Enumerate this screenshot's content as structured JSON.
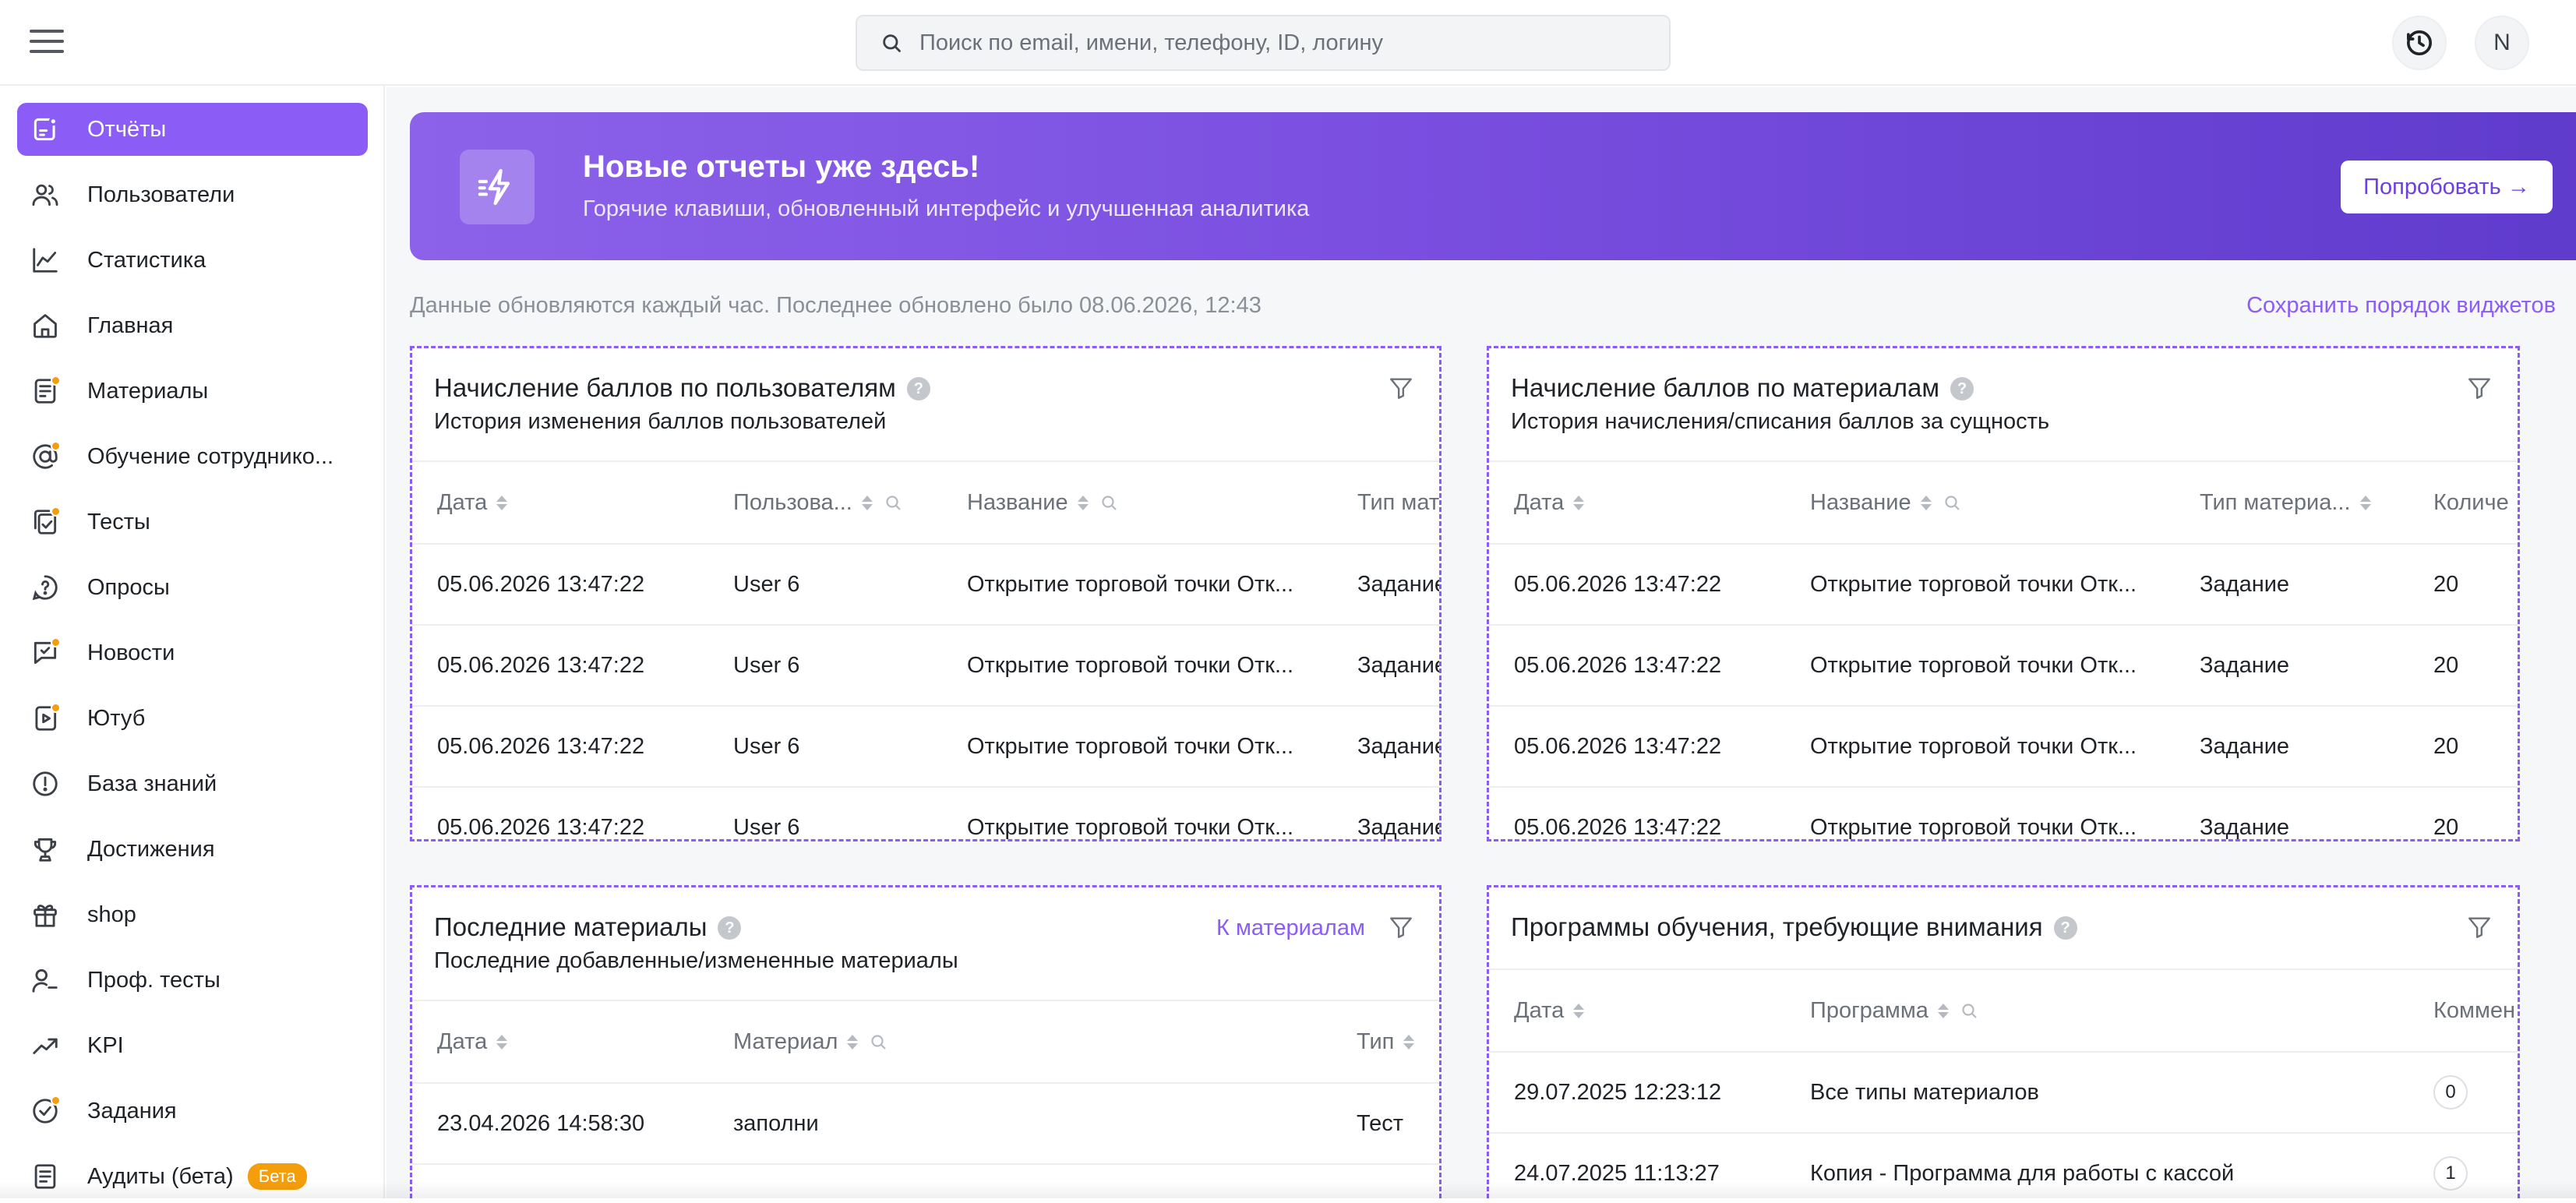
{
  "header": {
    "search_placeholder": "Поиск по email, имени, телефону, ID, логину",
    "avatar_initial": "N"
  },
  "sidebar": {
    "items": [
      {
        "label": "Отчёты",
        "icon": "reports-icon"
      },
      {
        "label": "Пользователи",
        "icon": "users-icon"
      },
      {
        "label": "Статистика",
        "icon": "statistics-icon"
      },
      {
        "label": "Главная",
        "icon": "home-icon"
      },
      {
        "label": "Материалы",
        "icon": "materials-icon"
      },
      {
        "label": "Обучение сотруднико...",
        "icon": "training-icon"
      },
      {
        "label": "Тесты",
        "icon": "tests-icon"
      },
      {
        "label": "Опросы",
        "icon": "surveys-icon"
      },
      {
        "label": "Новости",
        "icon": "news-icon"
      },
      {
        "label": "Ютуб",
        "icon": "youtube-icon"
      },
      {
        "label": "База знаний",
        "icon": "knowledge-base-icon"
      },
      {
        "label": "Достижения",
        "icon": "trophy-icon"
      },
      {
        "label": "shop",
        "icon": "gift-icon"
      },
      {
        "label": "Проф. тесты",
        "icon": "prof-tests-icon"
      },
      {
        "label": "KPI",
        "icon": "kpi-icon"
      },
      {
        "label": "Задания",
        "icon": "tasks-icon"
      },
      {
        "label": "Аудиты (бета)",
        "icon": "audits-icon",
        "badge": "Бета"
      }
    ]
  },
  "banner": {
    "title": "Новые отчеты уже здесь!",
    "subtitle": "Горячие клавиши, обновленный интерфейс и улучшенная аналитика",
    "button": "Попробовать →"
  },
  "update_note": "Данные обновляются каждый час. Последнее обновлено было 08.06.2026, 12:43",
  "save_order": "Сохранить порядок виджетов",
  "widgets": {
    "points_users": {
      "title": "Начисление баллов по пользователям",
      "subtitle": "История изменения баллов пользователей",
      "columns": [
        "Дата",
        "Пользова...",
        "Название",
        "Тип мат"
      ],
      "rows": [
        [
          "05.06.2026 13:47:22",
          "User 6",
          "Открытие торговой точки Отк...",
          "Задание"
        ],
        [
          "05.06.2026 13:47:22",
          "User 6",
          "Открытие торговой точки Отк...",
          "Задание"
        ],
        [
          "05.06.2026 13:47:22",
          "User 6",
          "Открытие торговой точки Отк...",
          "Задание"
        ],
        [
          "05.06.2026 13:47:22",
          "User 6",
          "Открытие торговой точки Отк...",
          "Задание"
        ]
      ]
    },
    "points_materials": {
      "title": "Начисление баллов по материалам",
      "subtitle": "История начисления/списания баллов за сущность",
      "columns": [
        "Дата",
        "Название",
        "Тип материа...",
        "Количе"
      ],
      "rows": [
        [
          "05.06.2026 13:47:22",
          "Открытие торговой точки Отк...",
          "Задание",
          "20"
        ],
        [
          "05.06.2026 13:47:22",
          "Открытие торговой точки Отк...",
          "Задание",
          "20"
        ],
        [
          "05.06.2026 13:47:22",
          "Открытие торговой точки Отк...",
          "Задание",
          "20"
        ],
        [
          "05.06.2026 13:47:22",
          "Открытие торговой точки Отк...",
          "Задание",
          "20"
        ]
      ]
    },
    "last_materials": {
      "title": "Последние материалы",
      "subtitle": "Последние добавленные/измененные материалы",
      "link": "К материалам",
      "columns": [
        "Дата",
        "Материал",
        "Тип"
      ],
      "rows": [
        [
          "23.04.2026 14:58:30",
          "заполни",
          "Тест"
        ]
      ]
    },
    "programs": {
      "title": "Программы обучения, требующие внимания",
      "columns": [
        "Дата",
        "Программа",
        "Коммен"
      ],
      "rows": [
        [
          "29.07.2025 12:23:12",
          "Все типы материалов",
          "0"
        ],
        [
          "24.07.2025 11:13:27",
          "Копия - Программа для работы с кассой",
          "1"
        ]
      ]
    }
  },
  "colors": {
    "accent": "#8b5cf6",
    "notification_dot": "#f59e0b",
    "banner_start": "#8c62ea",
    "banner_end": "#5f3bcc"
  }
}
